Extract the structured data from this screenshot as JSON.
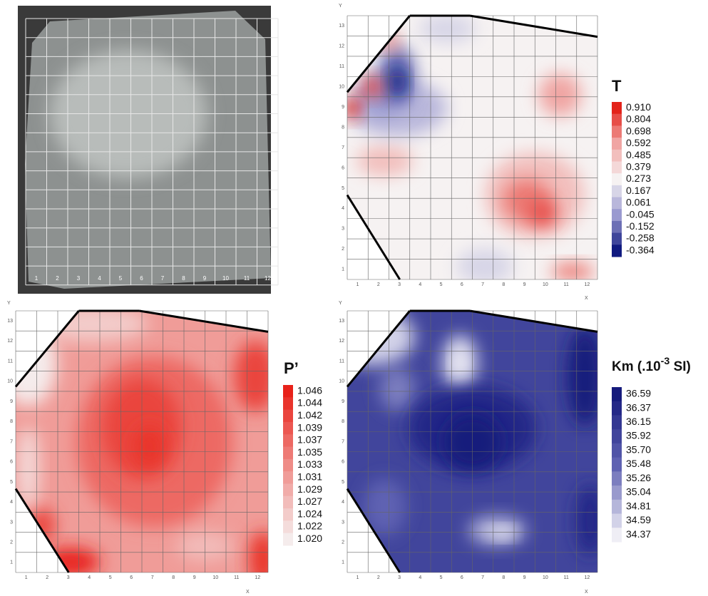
{
  "photo": {
    "x_ticks": [
      1,
      2,
      3,
      4,
      5,
      6,
      7,
      8,
      9,
      10,
      11,
      12
    ]
  },
  "axes": {
    "x_label": "X",
    "y_label": "Y",
    "x_ticks": [
      1,
      2,
      3,
      4,
      5,
      6,
      7,
      8,
      9,
      10,
      11,
      12
    ],
    "y_ticks": [
      1,
      2,
      3,
      4,
      5,
      6,
      7,
      8,
      9,
      10,
      11,
      12,
      13
    ]
  },
  "maps": [
    {
      "legend_title": "T",
      "levels": [
        {
          "value": 0.91,
          "label": "0.910"
        },
        0.804,
        0.698,
        0.592,
        0.485,
        0.379,
        0.273,
        0.167,
        0.061,
        -0.045,
        -0.152,
        -0.258,
        -0.364
      ]
    },
    {
      "legend_title": "P’",
      "levels": [
        1.046,
        1.044,
        1.042,
        1.039,
        1.037,
        1.035,
        1.033,
        1.031,
        1.029,
        1.027,
        1.024,
        1.022,
        {
          "value": 1.02,
          "label": "1.020"
        }
      ]
    },
    {
      "legend_title": "Km (.10",
      "legend_title_superscript": "-3",
      "legend_title_suffix": " SI)",
      "levels": [
        36.59,
        36.37,
        36.15,
        35.92,
        {
          "value": 35.7,
          "label": "35.70"
        },
        35.48,
        35.26,
        35.04,
        34.81,
        34.59,
        34.37
      ]
    }
  ]
}
